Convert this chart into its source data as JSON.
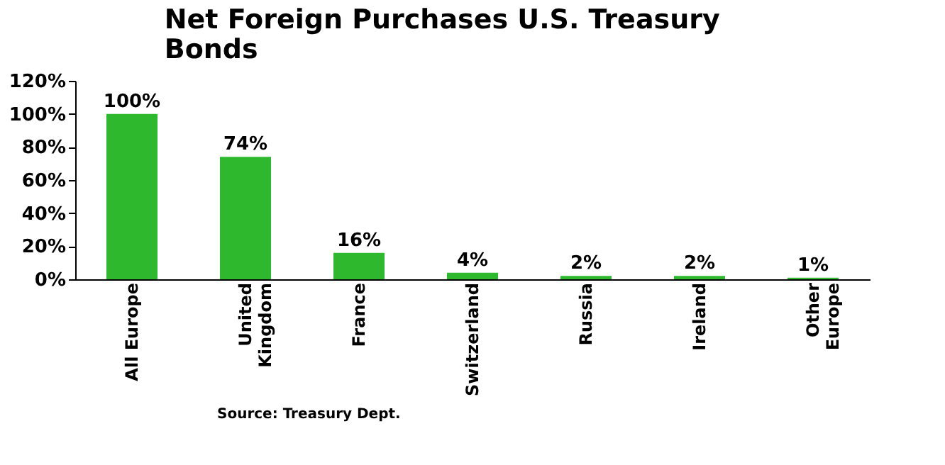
{
  "chart_data": {
    "type": "bar",
    "title": "Net Foreign Purchases U.S. Treasury Bonds",
    "categories": [
      "All Europe",
      "United\nKingdom",
      "France",
      "Switzerland",
      "Russia",
      "Ireland",
      "Other\nEurope"
    ],
    "values": [
      100,
      74,
      16,
      4,
      2,
      2,
      1
    ],
    "color": "#2db82d",
    "value_labels": [
      "100%",
      "74%",
      "16%",
      "4%",
      "2%",
      "2%",
      "1%"
    ],
    "ylim": [
      0,
      120
    ],
    "yticks": [
      {
        "value": 0,
        "label": "0%"
      },
      {
        "value": 20,
        "label": "20%"
      },
      {
        "value": 40,
        "label": "40%"
      },
      {
        "value": 60,
        "label": "60%"
      },
      {
        "value": 80,
        "label": "80%"
      },
      {
        "value": 100,
        "label": "100%"
      },
      {
        "value": 120,
        "label": "120%"
      }
    ],
    "grid": false,
    "annotations": [
      "Source: Treasury Dept."
    ]
  }
}
